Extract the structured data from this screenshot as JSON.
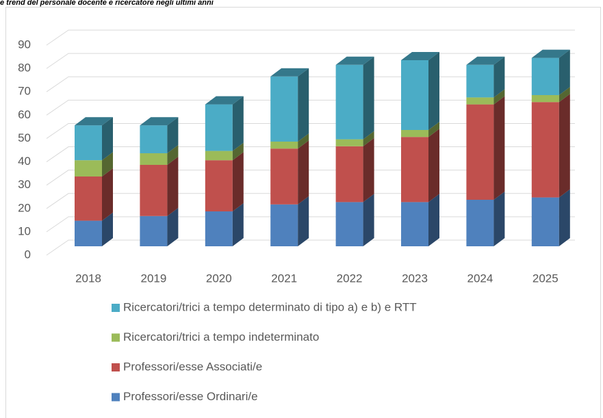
{
  "chart_data": {
    "type": "bar3d_stacked",
    "title": "e trend del personale docente e ricercatore negli ultimi anni",
    "categories": [
      "2018",
      "2019",
      "2020",
      "2021",
      "2022",
      "2023",
      "2024",
      "2025"
    ],
    "series": [
      {
        "name": "Professori/esse Ordinari/e",
        "color": "#4f81bd",
        "values": [
          11,
          13,
          15,
          18,
          19,
          19,
          20,
          21
        ]
      },
      {
        "name": "Professori/esse Associati/e",
        "color": "#c0504d",
        "values": [
          19,
          22,
          22,
          24,
          24,
          28,
          41,
          41
        ]
      },
      {
        "name": "Ricercatori/trici a tempo indeterminato",
        "color": "#9bbb59",
        "values": [
          7,
          5,
          4,
          3,
          3,
          3,
          3,
          3
        ]
      },
      {
        "name": "Ricercatori/trici a tempo determinato di tipo a) e b) e RTT",
        "color": "#4bacc6",
        "values": [
          15,
          12,
          20,
          28,
          32,
          30,
          14,
          16
        ]
      }
    ],
    "ylim": [
      0,
      90
    ],
    "yticks": [
      0,
      10,
      20,
      30,
      40,
      50,
      60,
      70,
      80,
      90
    ],
    "grid": true,
    "legend": "bottom"
  }
}
